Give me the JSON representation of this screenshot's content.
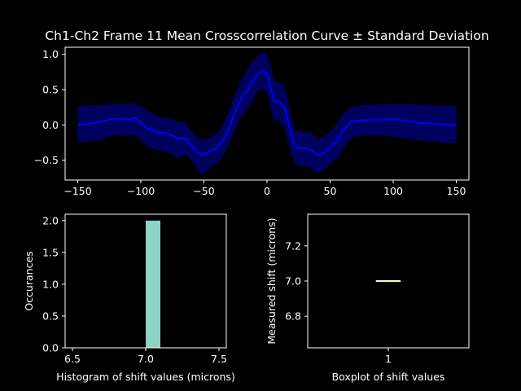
{
  "chart_data": [
    {
      "type": "line",
      "title": "Ch1-Ch2 Frame 11 Mean Crosscorrelation Curve ± Standard Deviation",
      "xlabel": "",
      "ylabel": "",
      "xlim": [
        -160,
        160
      ],
      "ylim": [
        -0.78,
        1.1
      ],
      "x_ticks": [
        -150,
        -100,
        -50,
        0,
        50,
        100,
        150
      ],
      "y_ticks": [
        -0.5,
        0.0,
        0.5,
        1.0
      ],
      "x_tick_labels": [
        "−150",
        "−100",
        "−50",
        "0",
        "50",
        "100",
        "150"
      ],
      "y_tick_labels": [
        "−0.5",
        "0.0",
        "0.5",
        "1.0"
      ],
      "line_color": "#0000ff",
      "band_color": "#00005e",
      "series": [
        {
          "x": [
            -150,
            -140,
            -130,
            -120,
            -110,
            -105,
            -100,
            -95,
            -90,
            -85,
            -80,
            -75,
            -70,
            -65,
            -60,
            -55,
            -52,
            -48,
            -44,
            -40,
            -35,
            -30,
            -25,
            -20,
            -15,
            -10,
            -7,
            -4,
            -2,
            0,
            3,
            6,
            10,
            14,
            18,
            22,
            26,
            30,
            35,
            40,
            45,
            48,
            52,
            56,
            60,
            65,
            70,
            80,
            90,
            100,
            110,
            120,
            130,
            140,
            150
          ],
          "mean": [
            0.0,
            0.02,
            0.05,
            0.09,
            0.08,
            0.1,
            0.03,
            -0.05,
            -0.08,
            -0.11,
            -0.12,
            -0.15,
            -0.2,
            -0.18,
            -0.28,
            -0.4,
            -0.42,
            -0.4,
            -0.36,
            -0.33,
            -0.22,
            -0.05,
            0.2,
            0.38,
            0.5,
            0.65,
            0.72,
            0.76,
            0.75,
            0.72,
            0.52,
            0.33,
            0.33,
            0.25,
            -0.05,
            -0.3,
            -0.33,
            -0.33,
            -0.36,
            -0.42,
            -0.4,
            -0.35,
            -0.28,
            -0.22,
            -0.08,
            0.02,
            0.06,
            0.07,
            0.07,
            0.08,
            0.06,
            0.03,
            0.02,
            0.01,
            0.0
          ],
          "upper": [
            0.27,
            0.28,
            0.28,
            0.3,
            0.3,
            0.31,
            0.26,
            0.2,
            0.16,
            0.12,
            0.1,
            0.08,
            0.04,
            0.04,
            -0.08,
            -0.18,
            -0.2,
            -0.2,
            -0.16,
            -0.12,
            -0.0,
            0.2,
            0.45,
            0.65,
            0.8,
            0.93,
            0.99,
            1.02,
            1.02,
            1.0,
            0.82,
            0.62,
            0.6,
            0.55,
            0.22,
            -0.06,
            -0.1,
            -0.1,
            -0.12,
            -0.2,
            -0.18,
            -0.12,
            -0.05,
            0.02,
            0.15,
            0.23,
            0.27,
            0.29,
            0.29,
            0.3,
            0.3,
            0.29,
            0.28,
            0.27,
            0.27
          ],
          "lower": [
            -0.25,
            -0.23,
            -0.2,
            -0.14,
            -0.16,
            -0.14,
            -0.22,
            -0.3,
            -0.34,
            -0.36,
            -0.38,
            -0.42,
            -0.48,
            -0.42,
            -0.5,
            -0.64,
            -0.7,
            -0.66,
            -0.58,
            -0.56,
            -0.45,
            -0.28,
            -0.05,
            0.12,
            0.24,
            0.4,
            0.48,
            0.52,
            0.5,
            0.46,
            0.24,
            0.05,
            0.06,
            -0.05,
            -0.32,
            -0.55,
            -0.58,
            -0.58,
            -0.62,
            -0.68,
            -0.64,
            -0.6,
            -0.52,
            -0.48,
            -0.34,
            -0.22,
            -0.16,
            -0.15,
            -0.15,
            -0.16,
            -0.2,
            -0.22,
            -0.23,
            -0.25,
            -0.26
          ]
        }
      ]
    },
    {
      "type": "bar",
      "title": "",
      "xlabel": "Histogram of shift values (microns)",
      "ylabel": "Occurances",
      "xlim": [
        6.45,
        7.55
      ],
      "ylim": [
        0,
        2.1
      ],
      "x_ticks": [
        6.5,
        7.0,
        7.5
      ],
      "y_ticks": [
        0.0,
        0.5,
        1.0,
        1.5,
        2.0
      ],
      "x_tick_labels": [
        "6.5",
        "7.0",
        "7.5"
      ],
      "y_tick_labels": [
        "0.0",
        "0.5",
        "1.0",
        "1.5",
        "2.0"
      ],
      "bar_color": "#8dd3c7",
      "bars": [
        {
          "left": 7.0,
          "right": 7.1,
          "value": 2
        }
      ]
    },
    {
      "type": "box",
      "title": "",
      "xlabel": "Boxplot of shift values",
      "ylabel": "Measured shift (microns)",
      "xlim": [
        0.5,
        1.5
      ],
      "ylim": [
        6.62,
        7.38
      ],
      "x_ticks": [
        1
      ],
      "y_ticks": [
        6.8,
        7.0,
        7.2
      ],
      "x_tick_labels": [
        "1"
      ],
      "y_tick_labels": [
        "6.8",
        "7.0",
        "7.2"
      ],
      "median_color": "#ffffb3",
      "box": {
        "position": 1,
        "median": 7.0,
        "q1": 7.0,
        "q3": 7.0,
        "whislo": 7.0,
        "whishi": 7.0
      }
    }
  ]
}
